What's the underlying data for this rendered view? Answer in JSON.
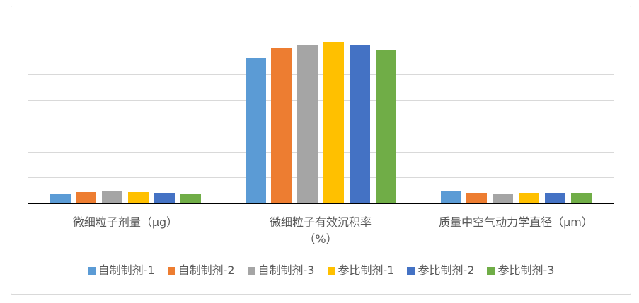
{
  "chart_data": {
    "type": "bar",
    "title": "",
    "categories": [
      "微细粒子剂量（μg）",
      "微细粒子有效沉积率（%）",
      "质量中空气动力学直径（μm）"
    ],
    "category_axis_labels": [
      "微细粒子剂量（μg）",
      "微细粒子有效沉积率\n（%）",
      "质量中空气动力学直径（μm）"
    ],
    "series": [
      {
        "name": "自制制剂-1",
        "color": "#5B9BD5",
        "values": [
          3.4,
          56,
          4.4
        ]
      },
      {
        "name": "自制制剂-2",
        "color": "#ED7D31",
        "values": [
          4.1,
          60,
          3.8
        ]
      },
      {
        "name": "自制制剂-3",
        "color": "#A5A5A5",
        "values": [
          4.6,
          61,
          3.6
        ]
      },
      {
        "name": "参比制剂-1",
        "color": "#FFC000",
        "values": [
          4.1,
          62,
          3.8
        ]
      },
      {
        "name": "参比制剂-2",
        "color": "#4472C4",
        "values": [
          3.8,
          61,
          3.8
        ]
      },
      {
        "name": "参比制剂-3",
        "color": "#70AD47",
        "values": [
          3.6,
          59,
          3.8
        ]
      }
    ],
    "ylim": [
      0,
      70
    ],
    "gridline_interval": 10,
    "value_axis_labels_visible": false,
    "grid": "on",
    "legend_position": "bottom"
  },
  "colors": {
    "gridline": "#D9D9D9",
    "axis_line": "#000000",
    "text": "#595959",
    "frame_border": "#D9D9D9",
    "background": "#FFFFFF"
  }
}
